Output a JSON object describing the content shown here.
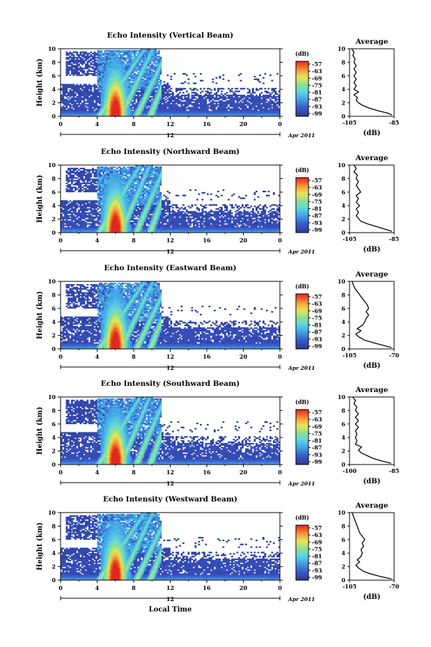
{
  "chart_data": [
    {
      "type": "heatmap",
      "title": "Echo Intensity (Vertical Beam)",
      "ylabel": "Height (km)",
      "x_ticks": [
        "0",
        "4",
        "8",
        "12",
        "16",
        "20",
        "0"
      ],
      "y_ticks": [
        "0",
        "2",
        "4",
        "6",
        "8",
        "10"
      ],
      "xlim": [
        0,
        24
      ],
      "ylim": [
        0,
        10
      ],
      "date_tick": "12",
      "date_label": "Apr 2011",
      "colorbar": {
        "label": "(dB)",
        "ticks": [
          "-57",
          "-63",
          "-69",
          "-75",
          "-81",
          "-87",
          "-93",
          "-99"
        ],
        "range": [
          -99,
          -57
        ]
      },
      "profile": {
        "title": "Average",
        "xlabel": "(dB)",
        "x_ticks": [
          "-105",
          "-85"
        ],
        "xlim": [
          -105,
          -85
        ],
        "y_ticks": [
          "0",
          "2",
          "4",
          "6",
          "8",
          "10"
        ],
        "ylim": [
          0,
          10
        ],
        "points": [
          [
            -86,
            0.2
          ],
          [
            -88,
            0.5
          ],
          [
            -92,
            0.8
          ],
          [
            -96,
            1.2
          ],
          [
            -99,
            1.6
          ],
          [
            -101,
            2.0
          ],
          [
            -102,
            2.4
          ],
          [
            -101.5,
            2.8
          ],
          [
            -103,
            3.2
          ],
          [
            -101,
            3.6
          ],
          [
            -103,
            4.0
          ],
          [
            -102,
            4.5
          ],
          [
            -103,
            5.0
          ],
          [
            -102,
            5.5
          ],
          [
            -103,
            6.0
          ],
          [
            -102,
            6.5
          ],
          [
            -103,
            7.0
          ],
          [
            -102,
            7.5
          ],
          [
            -103,
            8.0
          ],
          [
            -102.5,
            8.5
          ],
          [
            -103.5,
            9.0
          ],
          [
            -103,
            9.5
          ],
          [
            -104,
            10.0
          ]
        ]
      }
    },
    {
      "type": "heatmap",
      "title": "Echo Intensity (Northward Beam)",
      "ylabel": "Height (km)",
      "x_ticks": [
        "0",
        "4",
        "8",
        "12",
        "16",
        "20",
        "0"
      ],
      "y_ticks": [
        "0",
        "2",
        "4",
        "6",
        "8",
        "10"
      ],
      "xlim": [
        0,
        24
      ],
      "ylim": [
        0,
        10
      ],
      "date_tick": "12",
      "date_label": "Apr 2011",
      "colorbar": {
        "label": "(dB)",
        "ticks": [
          "-57",
          "-63",
          "-69",
          "-75",
          "-81",
          "-87",
          "-93",
          "-99"
        ],
        "range": [
          -99,
          -57
        ]
      },
      "profile": {
        "title": "Average",
        "xlabel": "(dB)",
        "x_ticks": [
          "-105",
          "-85"
        ],
        "xlim": [
          -105,
          -85
        ],
        "y_ticks": [
          "0",
          "2",
          "4",
          "6",
          "8",
          "10"
        ],
        "ylim": [
          0,
          10
        ],
        "points": [
          [
            -86,
            0.2
          ],
          [
            -89,
            0.5
          ],
          [
            -93,
            0.9
          ],
          [
            -97,
            1.3
          ],
          [
            -100,
            1.7
          ],
          [
            -101,
            2.1
          ],
          [
            -102,
            2.5
          ],
          [
            -101,
            3.0
          ],
          [
            -102,
            3.5
          ],
          [
            -100.5,
            4.0
          ],
          [
            -102,
            4.5
          ],
          [
            -101,
            5.0
          ],
          [
            -102,
            5.5
          ],
          [
            -100,
            6.0
          ],
          [
            -101,
            6.5
          ],
          [
            -102,
            7.0
          ],
          [
            -101,
            7.5
          ],
          [
            -102,
            8.0
          ],
          [
            -101.5,
            8.5
          ],
          [
            -103,
            9.0
          ],
          [
            -102,
            9.5
          ],
          [
            -103,
            10.0
          ]
        ]
      }
    },
    {
      "type": "heatmap",
      "title": "Echo Intensity (Eastward Beam)",
      "ylabel": "Height (km)",
      "x_ticks": [
        "0",
        "4",
        "8",
        "12",
        "16",
        "20",
        "0"
      ],
      "y_ticks": [
        "0",
        "2",
        "4",
        "6",
        "8",
        "10"
      ],
      "xlim": [
        0,
        24
      ],
      "ylim": [
        0,
        10
      ],
      "date_tick": "12",
      "date_label": "Apr 2011",
      "colorbar": {
        "label": "(dB)",
        "ticks": [
          "-57",
          "-63",
          "-69",
          "-75",
          "-81",
          "-87",
          "-93",
          "-99"
        ],
        "range": [
          -99,
          -57
        ]
      },
      "profile": {
        "title": "Average",
        "xlabel": "(dB)",
        "x_ticks": [
          "-105",
          "-70"
        ],
        "xlim": [
          -105,
          -70
        ],
        "y_ticks": [
          "0",
          "2",
          "4",
          "6",
          "8",
          "10"
        ],
        "ylim": [
          0,
          10
        ],
        "points": [
          [
            -72,
            0.2
          ],
          [
            -78,
            0.5
          ],
          [
            -86,
            0.9
          ],
          [
            -93,
            1.3
          ],
          [
            -98,
            1.8
          ],
          [
            -100,
            2.2
          ],
          [
            -96,
            2.7
          ],
          [
            -99,
            3.0
          ],
          [
            -95,
            3.5
          ],
          [
            -93,
            4.0
          ],
          [
            -92,
            4.5
          ],
          [
            -90,
            5.0
          ],
          [
            -92,
            5.5
          ],
          [
            -90,
            6.0
          ],
          [
            -91,
            6.5
          ],
          [
            -93,
            7.0
          ],
          [
            -95,
            7.5
          ],
          [
            -97,
            8.0
          ],
          [
            -99,
            8.5
          ],
          [
            -101,
            9.0
          ],
          [
            -102,
            9.5
          ],
          [
            -103,
            10.0
          ]
        ]
      }
    },
    {
      "type": "heatmap",
      "title": "Echo Intensity (Southward Beam)",
      "ylabel": "Height (km)",
      "x_ticks": [
        "0",
        "4",
        "8",
        "12",
        "16",
        "20",
        "0"
      ],
      "y_ticks": [
        "0",
        "2",
        "4",
        "6",
        "8",
        "10"
      ],
      "xlim": [
        0,
        24
      ],
      "ylim": [
        0,
        10
      ],
      "date_tick": "12",
      "date_label": "Apr 2011",
      "colorbar": {
        "label": "(dB)",
        "ticks": [
          "-57",
          "-63",
          "-69",
          "-75",
          "-81",
          "-87",
          "-93",
          "-99"
        ],
        "range": [
          -99,
          -57
        ]
      },
      "profile": {
        "title": "Average",
        "xlabel": "(dB)",
        "x_ticks": [
          "-100",
          "-85"
        ],
        "xlim": [
          -100,
          -85
        ],
        "y_ticks": [
          "0",
          "2",
          "4",
          "6",
          "8",
          "10"
        ],
        "ylim": [
          0,
          10
        ],
        "points": [
          [
            -86,
            0.2
          ],
          [
            -89,
            0.5
          ],
          [
            -92,
            0.9
          ],
          [
            -94,
            1.3
          ],
          [
            -96,
            1.7
          ],
          [
            -97,
            2.1
          ],
          [
            -96,
            2.6
          ],
          [
            -98,
            3.0
          ],
          [
            -97.5,
            3.5
          ],
          [
            -98,
            4.0
          ],
          [
            -97.5,
            4.5
          ],
          [
            -98,
            5.0
          ],
          [
            -97,
            5.5
          ],
          [
            -98,
            6.0
          ],
          [
            -97,
            6.5
          ],
          [
            -98,
            7.0
          ],
          [
            -97,
            7.5
          ],
          [
            -98,
            8.0
          ],
          [
            -97.5,
            8.5
          ],
          [
            -98.5,
            9.0
          ],
          [
            -98,
            9.5
          ],
          [
            -99,
            10.0
          ]
        ]
      }
    },
    {
      "type": "heatmap",
      "title": "Echo Intensity (Westward Beam)",
      "ylabel": "Height (km)",
      "xlabel": "Local Time",
      "x_ticks": [
        "0",
        "4",
        "8",
        "12",
        "16",
        "20",
        "0"
      ],
      "y_ticks": [
        "0",
        "2",
        "4",
        "6",
        "8",
        "10"
      ],
      "xlim": [
        0,
        24
      ],
      "ylim": [
        0,
        10
      ],
      "date_tick": "12",
      "date_label": "Apr 2011",
      "colorbar": {
        "label": "(dB)",
        "ticks": [
          "-57",
          "-63",
          "-69",
          "-75",
          "-81",
          "-87",
          "-93",
          "-99"
        ],
        "range": [
          -99,
          -57
        ]
      },
      "profile": {
        "title": "Average",
        "xlabel": "(dB)",
        "x_ticks": [
          "-105",
          "-70"
        ],
        "xlim": [
          -105,
          -70
        ],
        "y_ticks": [
          "0",
          "2",
          "4",
          "6",
          "8",
          "10"
        ],
        "ylim": [
          0,
          10
        ],
        "points": [
          [
            -72,
            0.2
          ],
          [
            -80,
            0.5
          ],
          [
            -88,
            0.9
          ],
          [
            -94,
            1.3
          ],
          [
            -98,
            1.8
          ],
          [
            -100,
            2.2
          ],
          [
            -97,
            2.7
          ],
          [
            -99,
            3.0
          ],
          [
            -96,
            3.5
          ],
          [
            -95,
            4.0
          ],
          [
            -96,
            4.5
          ],
          [
            -94,
            5.0
          ],
          [
            -95,
            5.5
          ],
          [
            -93,
            6.0
          ],
          [
            -95,
            6.5
          ],
          [
            -97,
            7.0
          ],
          [
            -98,
            7.5
          ],
          [
            -99,
            8.0
          ],
          [
            -100,
            8.5
          ],
          [
            -101,
            9.0
          ],
          [
            -102,
            9.5
          ],
          [
            -103,
            10.0
          ]
        ]
      }
    }
  ]
}
